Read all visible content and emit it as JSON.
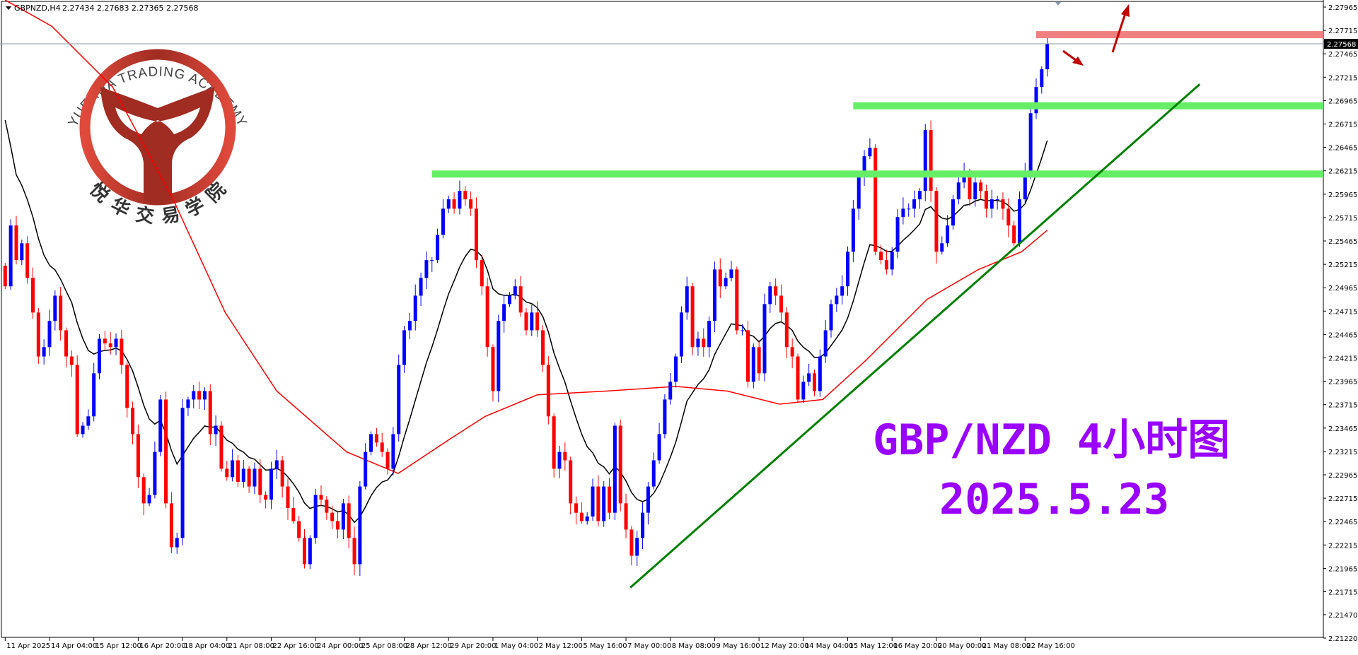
{
  "header": {
    "symbol": "GBPNZD,H4",
    "ohlc": "2.27434 2.27683 2.27365 2.27568"
  },
  "logo": {
    "english": "YUEHUA TRADING ACADEMY",
    "chinese": "悦华交易学院",
    "color": "#b0302a"
  },
  "annotation": {
    "title": "GBP/NZD 4小时图",
    "date": "2025.5.23",
    "color": "#9900ff"
  },
  "chart_data": {
    "type": "candlestick",
    "symbol": "GBPNZD",
    "timeframe": "H4",
    "current_price": "2.27568",
    "ylim": [
      2.2122,
      2.27965
    ],
    "y_ticks": [
      "2.27965",
      "2.27715",
      "2.27465",
      "2.27215",
      "2.26965",
      "2.26715",
      "2.26465",
      "2.26215",
      "2.25965",
      "2.25715",
      "2.25465",
      "2.25215",
      "2.24965",
      "2.24715",
      "2.24465",
      "2.24215",
      "2.23965",
      "2.23715",
      "2.23465",
      "2.23215",
      "2.22965",
      "2.22715",
      "2.22465",
      "2.22215",
      "2.21965",
      "2.21715",
      "2.21470",
      "2.21220"
    ],
    "x_ticks": [
      {
        "label": "11 Apr 2025",
        "bar": 0
      },
      {
        "label": "14 Apr 04:00",
        "bar": 8
      },
      {
        "label": "15 Apr 12:00",
        "bar": 16
      },
      {
        "label": "16 Apr 20:00",
        "bar": 24
      },
      {
        "label": "18 Apr 04:00",
        "bar": 32
      },
      {
        "label": "21 Apr 08:00",
        "bar": 40
      },
      {
        "label": "22 Apr 16:00",
        "bar": 48
      },
      {
        "label": "24 Apr 00:00",
        "bar": 56
      },
      {
        "label": "25 Apr 08:00",
        "bar": 64
      },
      {
        "label": "28 Apr 12:00",
        "bar": 72
      },
      {
        "label": "29 Apr 20:00",
        "bar": 80
      },
      {
        "label": "1 May 04:00",
        "bar": 88
      },
      {
        "label": "2 May 12:00",
        "bar": 96
      },
      {
        "label": "5 May 16:00",
        "bar": 104
      },
      {
        "label": "7 May 00:00",
        "bar": 112
      },
      {
        "label": "8 May 08:00",
        "bar": 120
      },
      {
        "label": "9 May 16:00",
        "bar": 128
      },
      {
        "label": "12 May 20:00",
        "bar": 136
      },
      {
        "label": "14 May 04:00",
        "bar": 144
      },
      {
        "label": "15 May 12:00",
        "bar": 152
      },
      {
        "label": "16 May 20:00",
        "bar": 160
      },
      {
        "label": "20 May 00:00",
        "bar": 168
      },
      {
        "label": "21 May 08:00",
        "bar": 176
      },
      {
        "label": "22 May 16:00",
        "bar": 184
      }
    ],
    "first_open": 2.252,
    "closes": [
      2.2498,
      2.2563,
      2.2526,
      2.2544,
      2.2507,
      2.247,
      2.2423,
      2.2433,
      2.2461,
      2.2488,
      2.2451,
      2.2423,
      2.2414,
      2.234,
      2.2349,
      2.2359,
      2.2405,
      2.2442,
      2.2437,
      2.2433,
      2.2442,
      2.2414,
      2.2368,
      2.234,
      2.2294,
      2.2266,
      2.2275,
      2.2321,
      2.2377,
      2.2266,
      2.2219,
      2.2229,
      2.2368,
      2.2377,
      2.2386,
      2.2377,
      2.2386,
      2.234,
      2.2349,
      2.2303,
      2.2294,
      2.2312,
      2.2289,
      2.2303,
      2.2284,
      2.2303,
      2.2275,
      2.227,
      2.2303,
      2.2312,
      2.2284,
      2.2261,
      2.2247,
      2.2229,
      2.2201,
      2.2229,
      2.2275,
      2.227,
      2.2256,
      2.2247,
      2.2238,
      2.2266,
      2.2229,
      2.2201,
      2.2284,
      2.2321,
      2.234,
      2.2331,
      2.2321,
      2.2303,
      2.234,
      2.2414,
      2.2451,
      2.2461,
      2.2488,
      2.2507,
      2.2526,
      2.2526,
      2.2553,
      2.2581,
      2.2591,
      2.2581,
      2.26,
      2.2591,
      2.2581,
      2.2526,
      2.2498,
      2.2433,
      2.2386,
      2.2461,
      2.2479,
      2.2488,
      2.2498,
      2.247,
      2.2451,
      2.247,
      2.2451,
      2.2414,
      2.2359,
      2.2303,
      2.2321,
      2.2312,
      2.2266,
      2.2256,
      2.2247,
      2.2252,
      2.2284,
      2.2247,
      2.2284,
      2.2256,
      2.2349,
      2.2266,
      2.2238,
      2.221,
      2.2229,
      2.2256,
      2.2284,
      2.2312,
      2.234,
      2.2377,
      2.2396,
      2.2423,
      2.247,
      2.2498,
      2.2433,
      2.2442,
      2.2433,
      2.2461,
      2.2516,
      2.2498,
      2.2507,
      2.2516,
      2.2451,
      2.2451,
      2.2396,
      2.2433,
      2.2405,
      2.2479,
      2.2498,
      2.2488,
      2.247,
      2.2433,
      2.2423,
      2.2377,
      2.2396,
      2.2405,
      2.2386,
      2.2423,
      2.2451,
      2.2479,
      2.2488,
      2.2498,
      2.2535,
      2.2581,
      2.2618,
      2.2637,
      2.2646,
      2.2535,
      2.2526,
      2.2516,
      2.2535,
      2.2572,
      2.2581,
      2.2581,
      2.2591,
      2.26,
      2.2665,
      2.26,
      2.2535,
      2.2544,
      2.2563,
      2.2591,
      2.2609,
      2.2618,
      2.2591,
      2.2609,
      2.26,
      2.2581,
      2.2591,
      2.2591,
      2.2581,
      2.2563,
      2.2544,
      2.2591,
      2.2618,
      2.2683,
      2.2711,
      2.273,
      2.27568
    ],
    "slow_ma": [
      [
        0,
        2.2804
      ],
      [
        8.4,
        2.2776
      ],
      [
        19.4,
        2.2711
      ],
      [
        30.3,
        2.2591
      ],
      [
        39.7,
        2.247
      ],
      [
        49,
        2.2386
      ],
      [
        61.6,
        2.2321
      ],
      [
        70.9,
        2.2298
      ],
      [
        80.3,
        2.2335
      ],
      [
        86.6,
        2.2359
      ],
      [
        96,
        2.2382
      ],
      [
        108.4,
        2.2386
      ],
      [
        121,
        2.2391
      ],
      [
        130.3,
        2.2386
      ],
      [
        139.7,
        2.2372
      ],
      [
        147.5,
        2.2377
      ],
      [
        155.3,
        2.2419
      ],
      [
        166.3,
        2.2484
      ],
      [
        175.6,
        2.2516
      ],
      [
        183.4,
        2.2535
      ],
      [
        188,
        2.2558
      ]
    ],
    "colors": {
      "bull": "#0000ff",
      "bear": "#ff0000",
      "fast_ma": "#000000",
      "slow_ma": "#ff0000"
    },
    "levels": [
      {
        "price": 2.2618,
        "from_bar": 77,
        "color": "#66ee66"
      },
      {
        "price": 2.2691,
        "from_bar": 153,
        "color": "#66ee66"
      },
      {
        "price": 2.2767,
        "from_bar": 186,
        "color": "#f08080"
      }
    ],
    "trendline": {
      "from": [
        112.8,
        2.2176
      ],
      "to": [
        215.5,
        2.2714
      ],
      "color": "#008000"
    }
  }
}
